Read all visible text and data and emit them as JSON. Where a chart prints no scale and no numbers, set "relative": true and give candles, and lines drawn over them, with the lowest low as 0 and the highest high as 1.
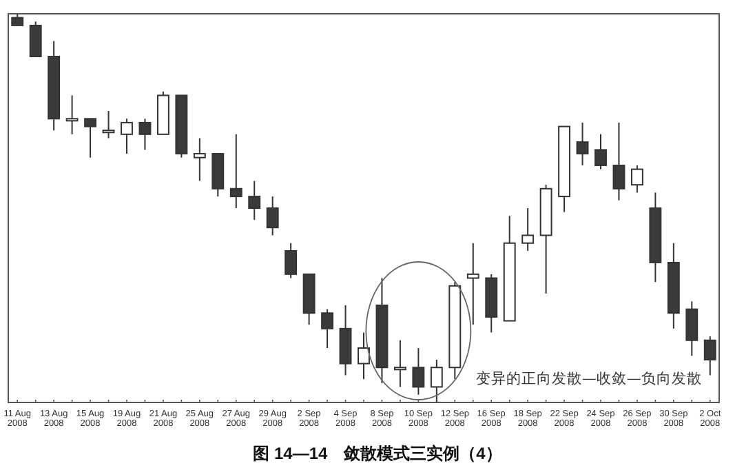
{
  "chart_data": {
    "type": "candlestick",
    "relative": true,
    "title": "图 14—14　敛散模式三实例（4）",
    "annotations": [
      "变异的正向发散—收敛—负向发散"
    ],
    "categories": [
      "11 Aug 2008",
      null,
      "13 Aug 2008",
      null,
      "15 Aug 2008",
      null,
      "19 Aug 2008",
      null,
      "21 Aug 2008",
      null,
      "25 Aug 2008",
      null,
      "27 Aug 2008",
      null,
      "29 Aug 2008",
      null,
      "2 Sep 2008",
      null,
      "4 Sep 2008",
      null,
      "8 Sep 2008",
      null,
      "10 Sep 2008",
      null,
      "12 Sep 2008",
      null,
      "16 Sep 2008",
      null,
      "18 Sep 2008",
      null,
      "22 Sep 2008",
      null,
      "24 Sep 2008",
      null,
      "26 Sep 2008",
      null,
      "30 Sep 2008",
      null,
      "2 Oct 2008"
    ],
    "ohlc": [
      [
        0.99,
        1,
        0.97,
        0.97
      ],
      [
        0.97,
        0.98,
        0.89,
        0.89
      ],
      [
        0.89,
        0.93,
        0.7,
        0.73
      ],
      [
        0.73,
        0.79,
        0.69,
        0.73
      ],
      [
        0.73,
        0.73,
        0.63,
        0.71
      ],
      [
        0.7,
        0.75,
        0.68,
        0.7
      ],
      [
        0.69,
        0.73,
        0.64,
        0.72
      ],
      [
        0.72,
        0.73,
        0.65,
        0.69
      ],
      [
        0.69,
        0.8,
        0.69,
        0.79
      ],
      [
        0.79,
        0.79,
        0.63,
        0.64
      ],
      [
        0.63,
        0.68,
        0.57,
        0.64
      ],
      [
        0.64,
        0.64,
        0.53,
        0.55
      ],
      [
        0.55,
        0.69,
        0.5,
        0.53
      ],
      [
        0.53,
        0.57,
        0.47,
        0.5
      ],
      [
        0.5,
        0.53,
        0.43,
        0.45
      ],
      [
        0.39,
        0.41,
        0.32,
        0.33
      ],
      [
        0.33,
        0.33,
        0.2,
        0.23
      ],
      [
        0.23,
        0.24,
        0.14,
        0.19
      ],
      [
        0.19,
        0.25,
        0.07,
        0.1
      ],
      [
        0.1,
        0.18,
        0.06,
        0.14
      ],
      [
        0.25,
        0.32,
        0.05,
        0.09
      ],
      [
        0.09,
        0.16,
        0.04,
        0.09
      ],
      [
        0.09,
        0.14,
        0.02,
        0.04
      ],
      [
        0.04,
        0.11,
        0,
        0.09
      ],
      [
        0.09,
        0.31,
        0.06,
        0.3
      ],
      [
        0.32,
        0.41,
        0.2,
        0.33
      ],
      [
        0.32,
        0.33,
        0.18,
        0.22
      ],
      [
        0.21,
        0.48,
        0.21,
        0.41
      ],
      [
        0.41,
        0.5,
        0.39,
        0.43
      ],
      [
        0.43,
        0.56,
        0.28,
        0.55
      ],
      [
        0.53,
        0.71,
        0.49,
        0.71
      ],
      [
        0.67,
        0.72,
        0.61,
        0.64
      ],
      [
        0.65,
        0.69,
        0.6,
        0.61
      ],
      [
        0.61,
        0.72,
        0.52,
        0.55
      ],
      [
        0.56,
        0.61,
        0.54,
        0.6
      ],
      [
        0.5,
        0.54,
        0.31,
        0.36
      ],
      [
        0.36,
        0.41,
        0.19,
        0.23
      ],
      [
        0.24,
        0.26,
        0.12,
        0.16
      ],
      [
        0.16,
        0.17,
        0.07,
        0.11
      ]
    ]
  }
}
